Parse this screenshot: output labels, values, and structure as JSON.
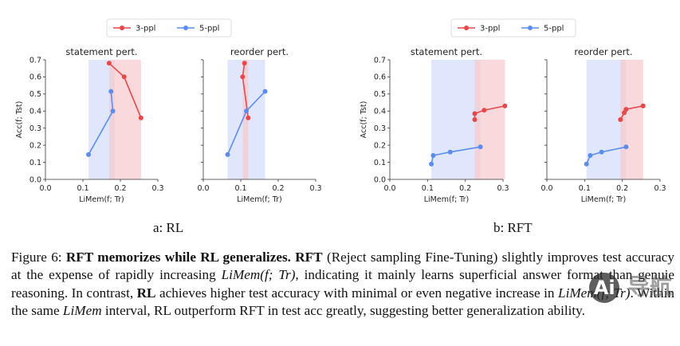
{
  "legend": {
    "series": [
      "3-ppl",
      "5-ppl"
    ]
  },
  "colors": {
    "three_ppl": "#e8474a",
    "five_ppl": "#5b8def",
    "band_red": "#f7c9cc",
    "band_blue": "#d8e1fb",
    "band_overlap": "#dcc9da"
  },
  "subcaptions": {
    "a": "a: RL",
    "b": "b: RFT"
  },
  "caption": {
    "fig": "Figure 6:",
    "bold1": "RFT memorizes while RL generalizes.",
    "bold2": "RFT",
    "t1": "(Reject sampling Fine-Tuning) slightly improves test accuracy at the expense of rapidly increasing",
    "math1": "LiMem(f; Tr)",
    "t2": ", indicating it mainly learns superficial answer format than genuie reasoning. In contrast,",
    "bold3": "RL",
    "t3": "achieves higher test accuracy with minimal or even negative increase in",
    "math2": "LiMem(f; Tr)",
    "t4": ". Within the same",
    "math3": "LiMem",
    "t5": "interval, RL outperform RFT in test acc greatly, suggesting better generalization ability."
  },
  "chart_data": [
    {
      "type": "line",
      "group": "a: RL",
      "title": "statement pert.",
      "xlabel": "LiMem(f; Tr)",
      "ylabel": "Acc(f; Tst)",
      "xlim": [
        0,
        0.3
      ],
      "ylim": [
        0,
        0.7
      ],
      "xticks": [
        "0.0",
        "0.1",
        "0.2",
        "0.3"
      ],
      "yticks": [
        "0.0",
        "0.1",
        "0.2",
        "0.3",
        "0.4",
        "0.5",
        "0.6",
        "0.7"
      ],
      "bands": {
        "3-ppl": [
          0.17,
          0.255
        ],
        "5-ppl": [
          0.115,
          0.185
        ]
      },
      "series": [
        {
          "name": "3-ppl",
          "points": [
            [
              0.17,
              0.68
            ],
            [
              0.21,
              0.6
            ],
            [
              0.255,
              0.36
            ]
          ]
        },
        {
          "name": "5-ppl",
          "points": [
            [
              0.115,
              0.145
            ],
            [
              0.18,
              0.4
            ],
            [
              0.175,
              0.515
            ]
          ]
        }
      ]
    },
    {
      "type": "line",
      "group": "a: RL",
      "title": "reorder pert.",
      "xlabel": "LiMem(f; Tr)",
      "ylabel": "",
      "xlim": [
        0,
        0.3
      ],
      "ylim": [
        0,
        0.7
      ],
      "xticks": [
        "0.0",
        "0.1",
        "0.2",
        "0.3"
      ],
      "yticks": [],
      "bands": {
        "3-ppl": [
          0.105,
          0.12
        ],
        "5-ppl": [
          0.065,
          0.165
        ]
      },
      "series": [
        {
          "name": "3-ppl",
          "points": [
            [
              0.11,
              0.68
            ],
            [
              0.105,
              0.6
            ],
            [
              0.12,
              0.36
            ]
          ]
        },
        {
          "name": "5-ppl",
          "points": [
            [
              0.065,
              0.145
            ],
            [
              0.115,
              0.4
            ],
            [
              0.165,
              0.515
            ]
          ]
        }
      ]
    },
    {
      "type": "line",
      "group": "b: RFT",
      "title": "statement pert.",
      "xlabel": "LiMem(f; Tr)",
      "ylabel": "Acc(f; Tst)",
      "xlim": [
        0,
        0.3
      ],
      "ylim": [
        0,
        0.7
      ],
      "xticks": [
        "0.0",
        "0.1",
        "0.2",
        "0.3"
      ],
      "yticks": [
        "0.0",
        "0.1",
        "0.2",
        "0.3",
        "0.4",
        "0.5",
        "0.6",
        "0.7"
      ],
      "bands": {
        "3-ppl": [
          0.225,
          0.305
        ],
        "5-ppl": [
          0.11,
          0.24
        ]
      },
      "series": [
        {
          "name": "3-ppl",
          "points": [
            [
              0.225,
              0.35
            ],
            [
              0.225,
              0.385
            ],
            [
              0.25,
              0.405
            ],
            [
              0.305,
              0.43
            ]
          ]
        },
        {
          "name": "5-ppl",
          "points": [
            [
              0.11,
              0.09
            ],
            [
              0.115,
              0.14
            ],
            [
              0.16,
              0.16
            ],
            [
              0.24,
              0.19
            ]
          ]
        }
      ]
    },
    {
      "type": "line",
      "group": "b: RFT",
      "title": "reorder pert.",
      "xlabel": "LiMem(f; Tr)",
      "ylabel": "",
      "xlim": [
        0,
        0.3
      ],
      "ylim": [
        0,
        0.7
      ],
      "xticks": [
        "0.0",
        "0.1",
        "0.2",
        "0.3"
      ],
      "yticks": [],
      "bands": {
        "3-ppl": [
          0.195,
          0.255
        ],
        "5-ppl": [
          0.105,
          0.21
        ]
      },
      "series": [
        {
          "name": "3-ppl",
          "points": [
            [
              0.195,
              0.35
            ],
            [
              0.205,
              0.39
            ],
            [
              0.21,
              0.41
            ],
            [
              0.255,
              0.43
            ]
          ]
        },
        {
          "name": "5-ppl",
          "points": [
            [
              0.105,
              0.09
            ],
            [
              0.115,
              0.14
            ],
            [
              0.145,
              0.16
            ],
            [
              0.21,
              0.19
            ]
          ]
        }
      ]
    }
  ]
}
